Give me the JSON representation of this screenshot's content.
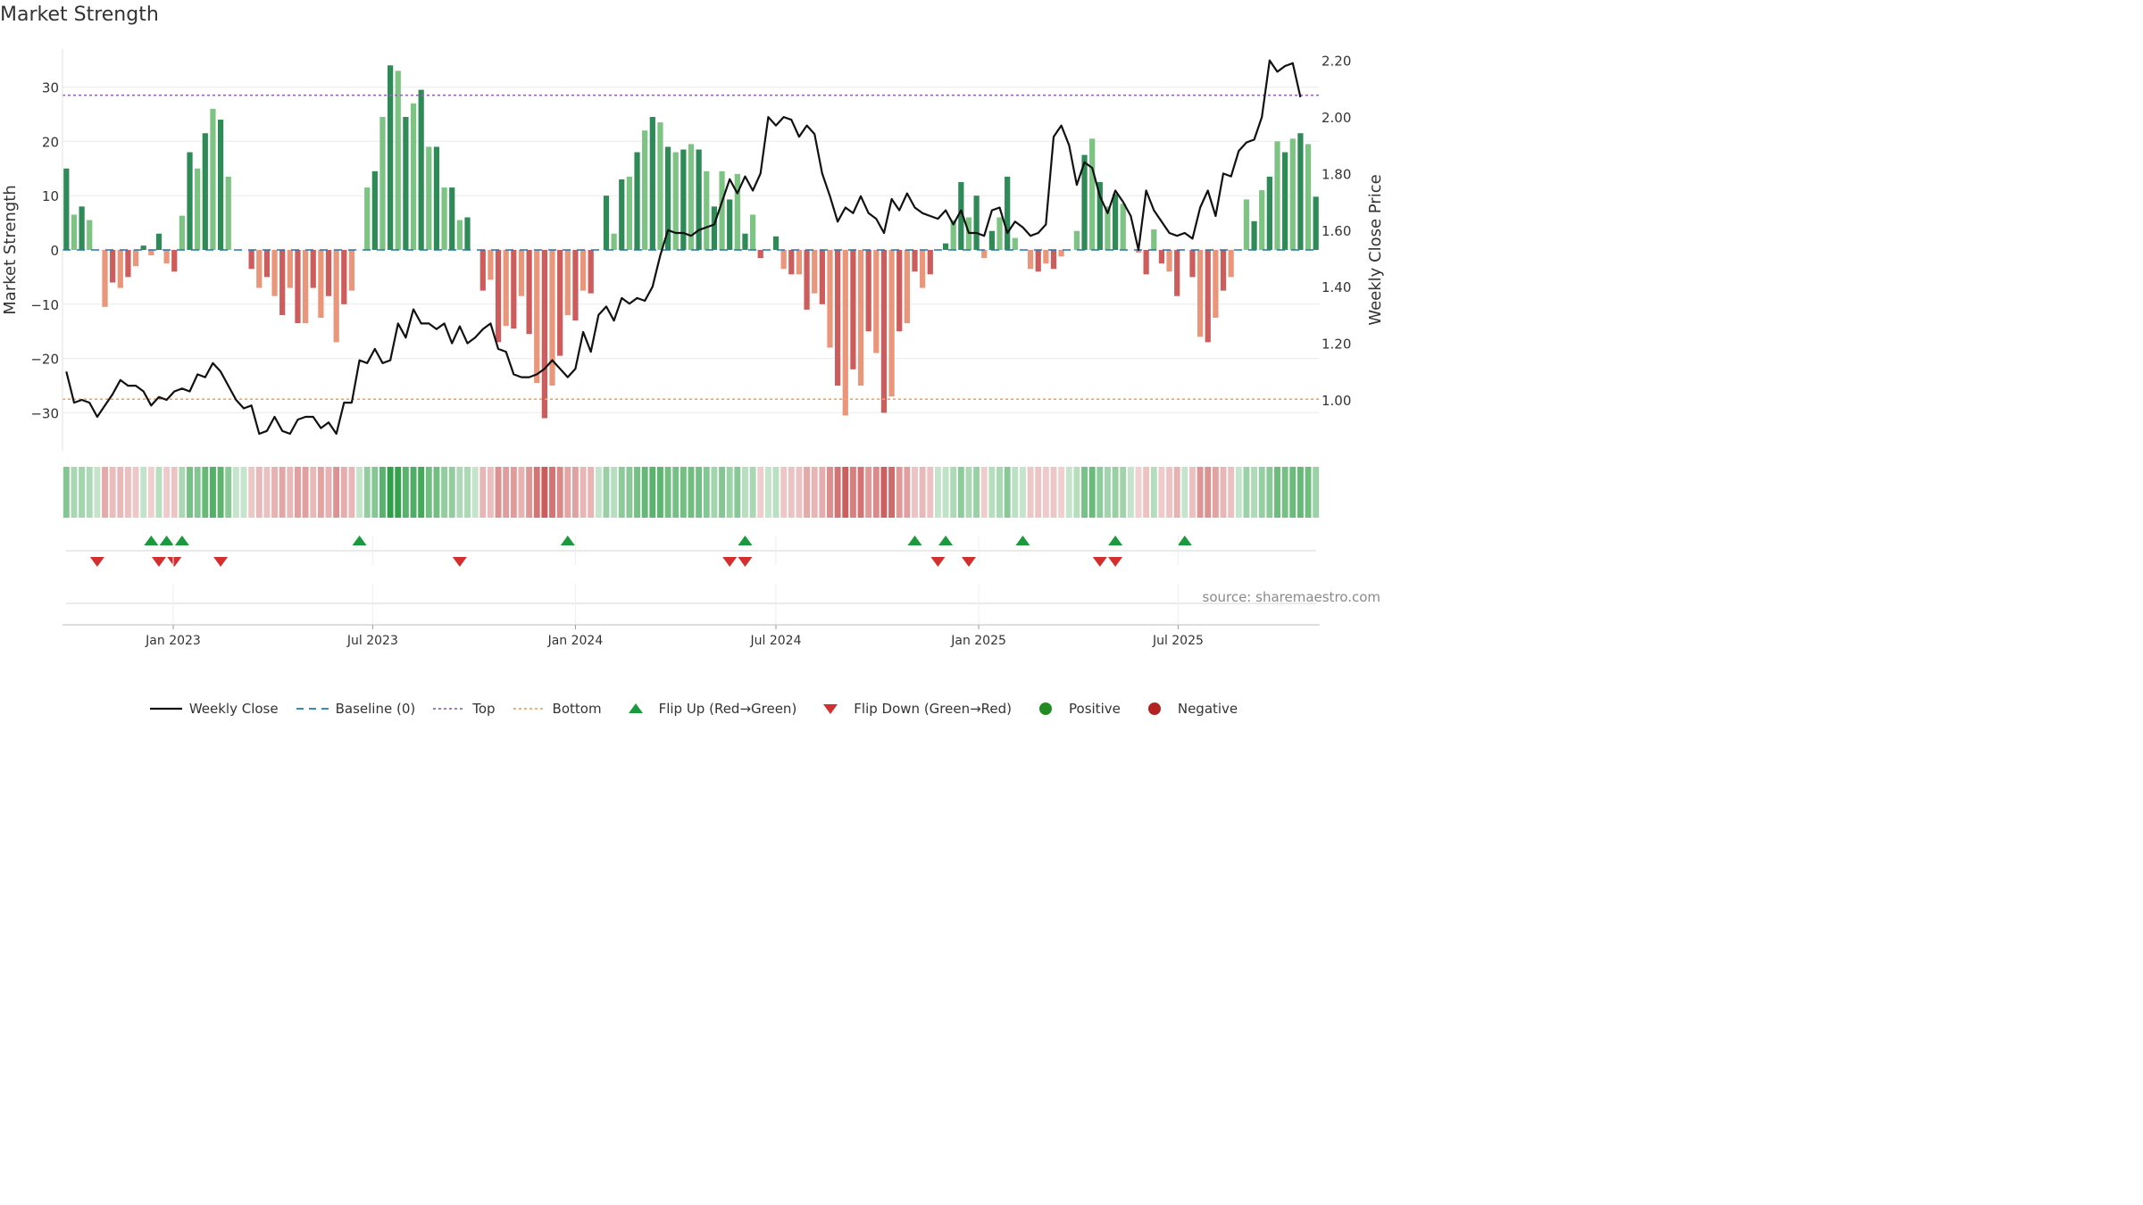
{
  "title": "Market Strength",
  "source": "source: sharemaestro.com",
  "colors": {
    "pos_dark": "#2e8b57",
    "pos_light": "#7dc383",
    "neg_dark": "#cd5c5c",
    "neg_light": "#e9967a",
    "line": "#111111",
    "baseline": "#1f77b4",
    "top": "#9467bd",
    "bottom": "#f4a460",
    "flip_up": "#1a9a3c",
    "flip_down": "#d32f2f",
    "positive": "#228b22",
    "negative": "#b22222"
  },
  "legend": [
    {
      "label": "Weekly Close",
      "symbol": "line"
    },
    {
      "label": "Baseline (0)",
      "symbol": "baseline"
    },
    {
      "label": "Top",
      "symbol": "top"
    },
    {
      "label": "Bottom",
      "symbol": "bottom"
    },
    {
      "label": "Flip Up (Red→Green)",
      "symbol": "flip_up"
    },
    {
      "label": "Flip Down (Green→Red)",
      "symbol": "flip_down"
    },
    {
      "label": "Positive",
      "symbol": "positive"
    },
    {
      "label": "Negative",
      "symbol": "negative"
    }
  ],
  "chart_data": {
    "type": "bar",
    "start_date": "2022-09-26",
    "interval_days": 7,
    "ylabel": "Market Strength",
    "y2label": "Weekly Close Price",
    "ylim": [
      -37,
      37
    ],
    "y2lim": [
      0.82,
      2.24
    ],
    "y_ticks": [
      30,
      20,
      10,
      0,
      -10,
      -20,
      -30
    ],
    "y_tick_labels": [
      "30",
      "20",
      "10",
      "0",
      "−10",
      "−20",
      "−30"
    ],
    "y2_ticks": [
      2.2,
      2.0,
      1.8,
      1.6,
      1.4,
      1.2,
      1.0
    ],
    "y2_tick_labels": [
      "2.20",
      "2.00",
      "1.80",
      "1.60",
      "1.40",
      "1.20",
      "1.00"
    ],
    "x_ticks": [
      "2023-01-01",
      "2023-07-01",
      "2024-01-01",
      "2024-07-01",
      "2025-01-01",
      "2025-07-01"
    ],
    "x_tick_labels": [
      "Jan 2023",
      "Jul 2023",
      "Jan 2024",
      "Jul 2024",
      "Jan 2025",
      "Jul 2025"
    ],
    "top_line": 28.5,
    "bottom_line": -27.5,
    "baseline": 0,
    "strength": [
      15,
      6.5,
      8,
      5.5,
      0,
      -10.5,
      -6,
      -7,
      -5,
      -3,
      0.8,
      -1,
      3,
      -2.5,
      -4,
      6.3,
      18,
      15,
      21.5,
      26,
      24,
      13.5,
      0,
      0,
      -3.5,
      -7,
      -5,
      -8.5,
      -12,
      -7,
      -13.5,
      -13.5,
      -7,
      -12.5,
      -8.5,
      -17,
      -10,
      -7.5,
      0,
      11.5,
      14.5,
      24.5,
      34,
      33,
      24.5,
      27,
      29.5,
      19,
      19,
      11.5,
      11.5,
      5.5,
      6,
      0,
      -7.5,
      -5.5,
      -17,
      -14,
      -14.5,
      -8.5,
      -15.5,
      -24.5,
      -31,
      -25,
      -19.5,
      -12,
      -13,
      -7.5,
      -8,
      0,
      10,
      3,
      13,
      13.5,
      18,
      22,
      24.5,
      23.5,
      19,
      18,
      18.5,
      19.5,
      18.5,
      14.5,
      8,
      14.5,
      9.3,
      14,
      3,
      6.5,
      -1.5,
      0,
      2.5,
      -3.5,
      -4.5,
      -4.5,
      -11,
      -8,
      -10,
      -18,
      -25,
      -30.5,
      -22,
      -25,
      -15,
      -19,
      -30,
      -27,
      -15,
      -13.5,
      -4,
      -7,
      -4.5,
      0,
      1.2,
      5.5,
      12.5,
      6,
      10,
      -1.5,
      3.5,
      6,
      13.5,
      2.2,
      0,
      -3.5,
      -4,
      -2.5,
      -3.5,
      -1.2,
      0,
      3.5,
      17.5,
      20.5,
      12.5,
      8,
      10.3,
      8.5,
      0,
      -0.5,
      -4.5,
      3.8,
      -2.5,
      -4,
      -8.5,
      0,
      -5,
      -16,
      -17,
      -12.5,
      -7.5,
      -5,
      0,
      9.3,
      5.3,
      11,
      13.5,
      20,
      18,
      20.5,
      21.5,
      19.5,
      9.8
    ],
    "close": [
      1.1,
      0.99,
      1.0,
      0.99,
      0.94,
      0.98,
      1.02,
      1.07,
      1.05,
      1.05,
      1.03,
      0.98,
      1.01,
      1.0,
      1.03,
      1.04,
      1.03,
      1.09,
      1.08,
      1.13,
      1.1,
      1.05,
      1.0,
      0.97,
      0.98,
      0.88,
      0.89,
      0.94,
      0.89,
      0.88,
      0.93,
      0.94,
      0.94,
      0.9,
      0.92,
      0.88,
      0.99,
      0.99,
      1.14,
      1.13,
      1.18,
      1.13,
      1.14,
      1.27,
      1.22,
      1.32,
      1.27,
      1.27,
      1.25,
      1.27,
      1.2,
      1.26,
      1.2,
      1.22,
      1.25,
      1.27,
      1.18,
      1.17,
      1.09,
      1.08,
      1.08,
      1.09,
      1.11,
      1.14,
      1.11,
      1.08,
      1.11,
      1.24,
      1.17,
      1.3,
      1.33,
      1.28,
      1.36,
      1.34,
      1.36,
      1.35,
      1.4,
      1.51,
      1.6,
      1.59,
      1.59,
      1.58,
      1.6,
      1.61,
      1.62,
      1.7,
      1.78,
      1.73,
      1.79,
      1.74,
      1.8,
      2.0,
      1.97,
      2.0,
      1.99,
      1.93,
      1.97,
      1.94,
      1.8,
      1.72,
      1.63,
      1.68,
      1.66,
      1.72,
      1.66,
      1.64,
      1.59,
      1.71,
      1.67,
      1.73,
      1.68,
      1.66,
      1.65,
      1.64,
      1.67,
      1.62,
      1.67,
      1.59,
      1.59,
      1.58,
      1.67,
      1.68,
      1.59,
      1.63,
      1.61,
      1.58,
      1.59,
      1.62,
      1.93,
      1.97,
      1.9,
      1.76,
      1.84,
      1.82,
      1.72,
      1.66,
      1.74,
      1.7,
      1.65,
      1.53,
      1.74,
      1.67,
      1.63,
      1.59,
      1.58,
      1.59,
      1.57,
      1.68,
      1.74,
      1.65,
      1.8,
      1.79,
      1.88,
      1.91,
      1.92,
      2.0,
      2.2,
      2.16,
      2.18,
      2.19,
      2.07
    ],
    "flip_up_dates": [
      "2022-12-12",
      "2022-12-26",
      "2023-01-09",
      "2023-06-19",
      "2023-12-25",
      "2024-06-03",
      "2024-11-04",
      "2024-12-02",
      "2025-02-10",
      "2025-05-05",
      "2025-07-07"
    ],
    "flip_down_dates": [
      "2022-10-24",
      "2022-12-19",
      "2023-01-02",
      "2023-02-13",
      "2023-09-18",
      "2024-05-20",
      "2024-06-03",
      "2024-11-25",
      "2024-12-23",
      "2025-04-21",
      "2025-05-05"
    ]
  }
}
